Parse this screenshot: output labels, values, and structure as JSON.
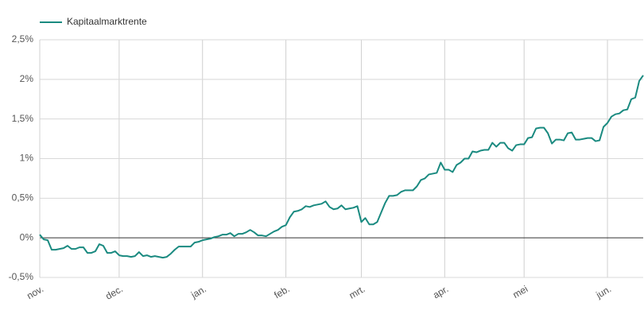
{
  "chart_data": {
    "type": "line",
    "categories": [
      "nov.",
      null,
      null,
      null,
      null,
      null,
      null,
      null,
      null,
      null,
      null,
      null,
      null,
      null,
      null,
      null,
      null,
      null,
      null,
      null,
      "dec.",
      null,
      null,
      null,
      null,
      null,
      null,
      null,
      null,
      null,
      null,
      null,
      null,
      null,
      null,
      null,
      null,
      null,
      null,
      null,
      null,
      "jan.",
      null,
      null,
      null,
      null,
      null,
      null,
      null,
      null,
      null,
      null,
      null,
      null,
      null,
      null,
      null,
      null,
      null,
      null,
      null,
      null,
      "feb.",
      null,
      null,
      null,
      null,
      null,
      null,
      null,
      null,
      null,
      null,
      null,
      null,
      null,
      null,
      null,
      null,
      null,
      null,
      "mrt.",
      null,
      null,
      null,
      null,
      null,
      null,
      null,
      null,
      null,
      null,
      null,
      null,
      null,
      null,
      null,
      null,
      null,
      null,
      null,
      null,
      "apr.",
      null,
      null,
      null,
      null,
      null,
      null,
      null,
      null,
      null,
      null,
      null,
      null,
      null,
      null,
      null,
      null,
      null,
      null,
      null,
      "mei",
      null,
      null,
      null,
      null,
      null,
      null,
      null,
      null,
      null,
      null,
      null,
      null,
      null,
      null,
      null,
      null,
      null,
      null,
      null,
      null,
      "jun.",
      null,
      null,
      null,
      null,
      null,
      null,
      null,
      null,
      null
    ],
    "series": [
      {
        "name": "Kapitaalmarktrente",
        "color": "#1a8a80",
        "values": [
          0.04,
          -0.02,
          -0.03,
          -0.15,
          -0.15,
          -0.14,
          -0.13,
          -0.1,
          -0.14,
          -0.14,
          -0.12,
          -0.12,
          -0.19,
          -0.19,
          -0.17,
          -0.08,
          -0.1,
          -0.19,
          -0.19,
          -0.17,
          -0.22,
          -0.23,
          -0.23,
          -0.24,
          -0.23,
          -0.18,
          -0.23,
          -0.22,
          -0.24,
          -0.23,
          -0.24,
          -0.25,
          -0.24,
          -0.2,
          -0.15,
          -0.11,
          -0.11,
          -0.11,
          -0.11,
          -0.06,
          -0.05,
          -0.03,
          -0.02,
          -0.01,
          0.01,
          0.02,
          0.04,
          0.04,
          0.06,
          0.02,
          0.05,
          0.05,
          0.07,
          0.1,
          0.07,
          0.03,
          0.03,
          0.02,
          0.05,
          0.08,
          0.1,
          0.14,
          0.16,
          0.26,
          0.33,
          0.34,
          0.36,
          0.4,
          0.39,
          0.41,
          0.42,
          0.43,
          0.46,
          0.39,
          0.36,
          0.37,
          0.41,
          0.36,
          0.37,
          0.38,
          0.4,
          0.2,
          0.25,
          0.17,
          0.17,
          0.2,
          0.32,
          0.44,
          0.53,
          0.53,
          0.54,
          0.58,
          0.6,
          0.6,
          0.6,
          0.65,
          0.73,
          0.75,
          0.8,
          0.81,
          0.82,
          0.95,
          0.86,
          0.86,
          0.83,
          0.92,
          0.95,
          1.0,
          1.0,
          1.09,
          1.08,
          1.1,
          1.11,
          1.11,
          1.2,
          1.15,
          1.2,
          1.2,
          1.13,
          1.1,
          1.17,
          1.18,
          1.18,
          1.26,
          1.27,
          1.38,
          1.39,
          1.39,
          1.32,
          1.19,
          1.24,
          1.24,
          1.23,
          1.32,
          1.33,
          1.24,
          1.24,
          1.25,
          1.26,
          1.26,
          1.22,
          1.23,
          1.4,
          1.45,
          1.53,
          1.56,
          1.57,
          1.61,
          1.62,
          1.75,
          1.77,
          1.98,
          2.05
        ]
      }
    ],
    "ylim": [
      -0.5,
      2.5
    ],
    "yticks": [
      {
        "value": -0.5,
        "label": "-0,5%"
      },
      {
        "value": 0,
        "label": "0%"
      },
      {
        "value": 0.5,
        "label": "0,5%"
      },
      {
        "value": 1,
        "label": "1%"
      },
      {
        "value": 1.5,
        "label": "1,5%"
      },
      {
        "value": 2,
        "label": "2%"
      },
      {
        "value": 2.5,
        "label": "2,5%"
      }
    ],
    "grid": true,
    "legend": "top-left"
  }
}
